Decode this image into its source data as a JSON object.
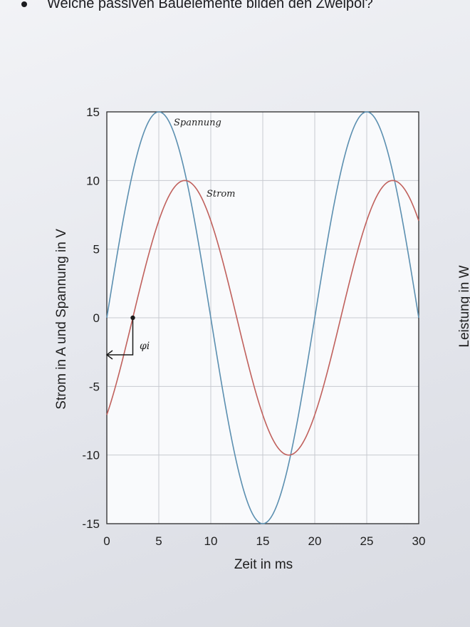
{
  "question": {
    "text": "Welche passiven Bauelemente bilden den Zweipol?"
  },
  "right_axis_label": "Leistung in W",
  "annotations": {
    "spannung": "Spannung",
    "strom": "Strom",
    "phi": "φi"
  },
  "chart_data": {
    "type": "line",
    "title": "",
    "xlabel": "Zeit in ms",
    "ylabel": "Strom in A und Spannung in V",
    "xlim": [
      0,
      30
    ],
    "ylim": [
      -15,
      15
    ],
    "xticks": [
      0,
      5,
      10,
      15,
      20,
      25,
      30
    ],
    "yticks": [
      -15,
      -10,
      -5,
      0,
      5,
      10,
      15
    ],
    "grid": true,
    "series": [
      {
        "name": "Spannung",
        "color": "#5b8fb0",
        "amplitude": 15,
        "period_ms": 20,
        "phase_ms": 0,
        "x": [
          0,
          5,
          10,
          15,
          20,
          25,
          30
        ],
        "y": [
          0,
          15,
          0,
          -15,
          0,
          15,
          0
        ]
      },
      {
        "name": "Strom",
        "color": "#c0605c",
        "amplitude": 10,
        "period_ms": 20,
        "phase_ms": -2.5,
        "x": [
          0,
          2.5,
          7.5,
          12.5,
          17.5,
          22.5,
          27.5,
          30
        ],
        "y": [
          -7.07,
          0,
          10,
          0,
          -10,
          0,
          10,
          7.07
        ]
      }
    ],
    "phase_marker": {
      "x_ms": 2.5,
      "label": "φi"
    }
  }
}
